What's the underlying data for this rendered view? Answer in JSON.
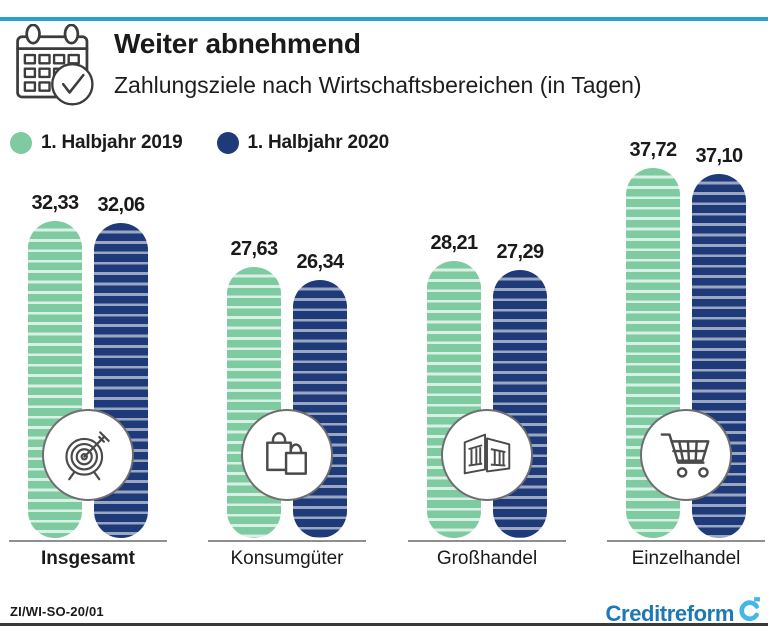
{
  "colors": {
    "series_2019": "#7ECAA1",
    "series_2020": "#1E3A78",
    "top_rule_cyan": "#2BA1C9",
    "brand_blue": "#1C79B5",
    "brand_cyan": "#45B7E6"
  },
  "header": {
    "title": "Weiter abnehmend",
    "subtitle": "Zahlungsziele nach Wirtschaftsbereichen (in Tagen)",
    "header_icon": "calendar-check-icon"
  },
  "legend": [
    {
      "label": "1. Halbjahr 2019",
      "color": "#7ECAA1"
    },
    {
      "label": "1. Halbjahr 2020",
      "color": "#1E3A78"
    }
  ],
  "chart_data": {
    "type": "bar",
    "title": "Weiter abnehmend",
    "subtitle": "Zahlungsziele nach Wirtschaftsbereichen (in Tagen)",
    "unit": "Tage",
    "decimal_separator": ",",
    "categories": [
      "Insgesamt",
      "Konsumgüter",
      "Großhandel",
      "Einzelhandel"
    ],
    "category_icons": [
      "target-icon",
      "shopping-bags-icon",
      "warehouse-icon",
      "shopping-cart-icon"
    ],
    "series": [
      {
        "name": "1. Halbjahr 2019",
        "values": [
          32.33,
          27.63,
          28.21,
          37.72
        ]
      },
      {
        "name": "1. Halbjahr 2020",
        "values": [
          32.06,
          26.34,
          27.29,
          37.1
        ]
      }
    ],
    "ylim": [
      0,
      40
    ],
    "grid": false,
    "legend_position": "top-left",
    "value_labels_shown": true
  },
  "footer": {
    "code": "ZI/WI-SO-20/01",
    "brand": "Creditreform",
    "brand_mark": "creditreform-c-flag-icon"
  }
}
